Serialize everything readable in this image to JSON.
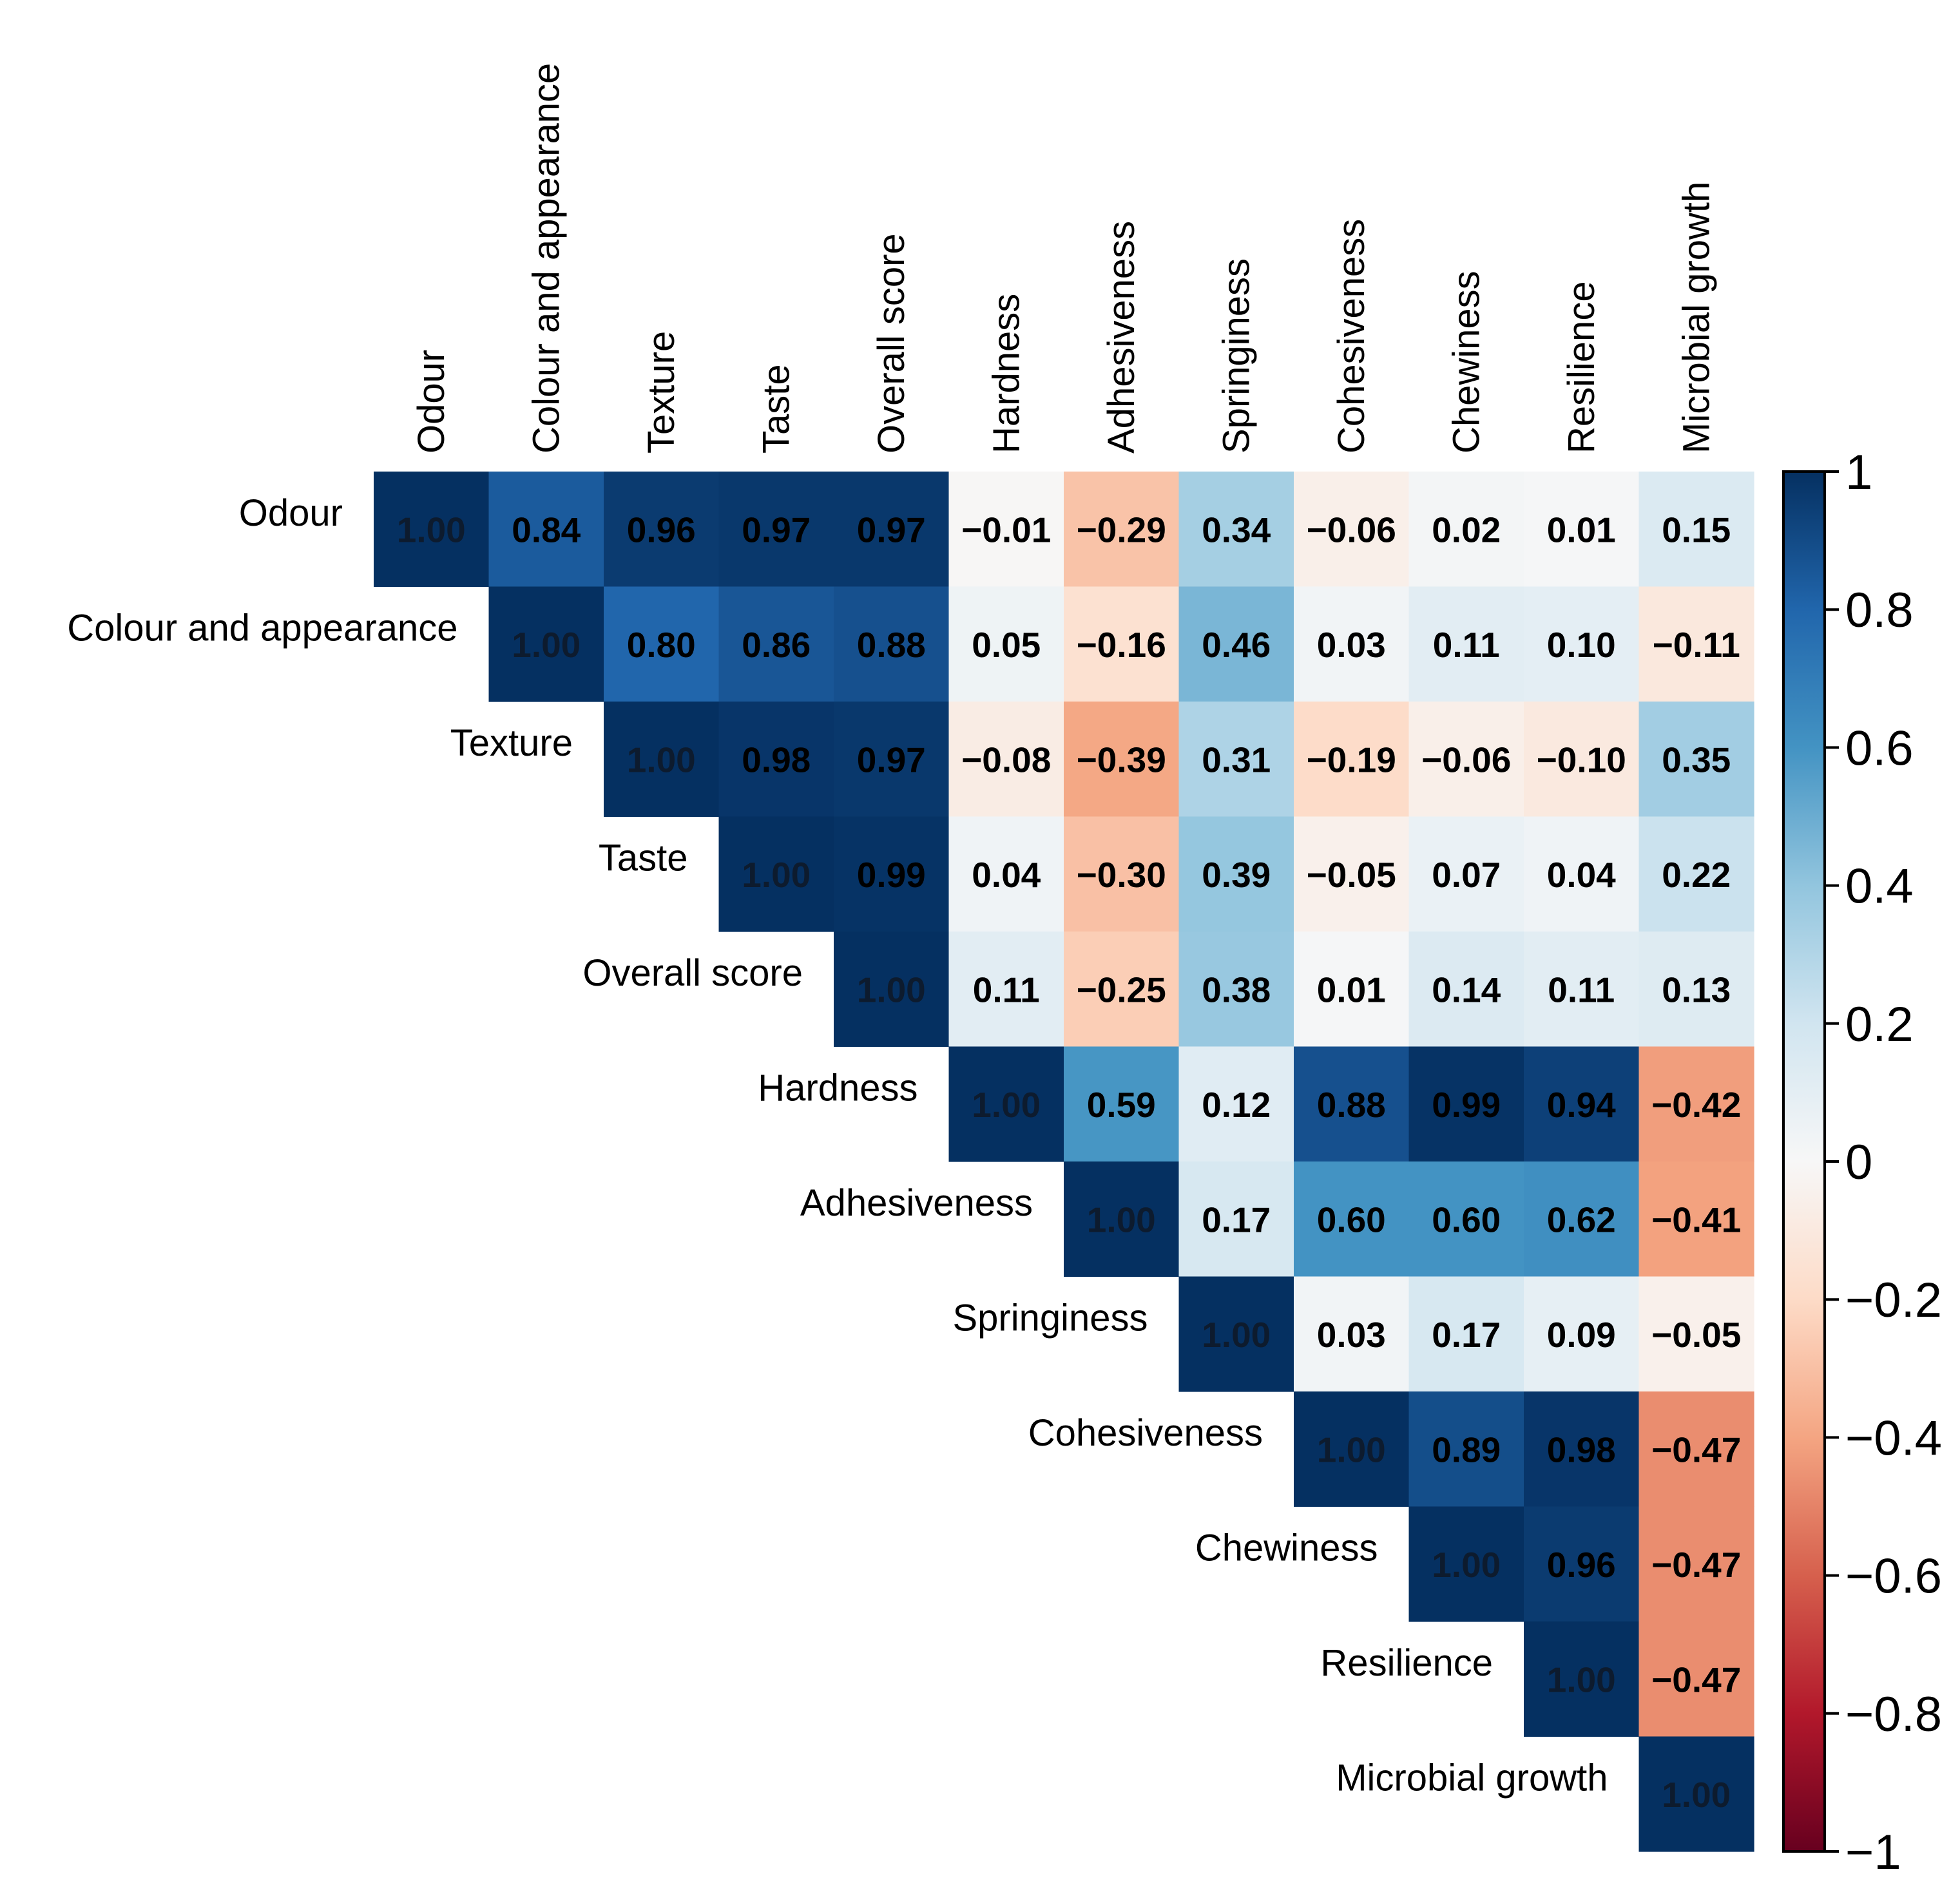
{
  "chart_data": {
    "type": "heatmap",
    "variables": [
      "Odour",
      "Colour and appearance",
      "Texture",
      "Taste",
      "Overall score",
      "Hardness",
      "Adhesiveness",
      "Springiness",
      "Cohesiveness",
      "Chewiness",
      "Resilience",
      "Microbial growth"
    ],
    "matrix": [
      [
        1.0,
        0.84,
        0.96,
        0.97,
        0.97,
        -0.01,
        -0.29,
        0.34,
        -0.06,
        0.02,
        0.01,
        0.15
      ],
      [
        null,
        1.0,
        0.8,
        0.86,
        0.88,
        0.05,
        -0.16,
        0.46,
        0.03,
        0.11,
        0.1,
        -0.11
      ],
      [
        null,
        null,
        1.0,
        0.98,
        0.97,
        -0.08,
        -0.39,
        0.31,
        -0.19,
        -0.06,
        -0.1,
        0.35
      ],
      [
        null,
        null,
        null,
        1.0,
        0.99,
        0.04,
        -0.3,
        0.39,
        -0.05,
        0.07,
        0.04,
        0.22
      ],
      [
        null,
        null,
        null,
        null,
        1.0,
        0.11,
        -0.25,
        0.38,
        0.01,
        0.14,
        0.11,
        0.13
      ],
      [
        null,
        null,
        null,
        null,
        null,
        1.0,
        0.59,
        0.12,
        0.88,
        0.99,
        0.94,
        -0.42
      ],
      [
        null,
        null,
        null,
        null,
        null,
        null,
        1.0,
        0.17,
        0.6,
        0.6,
        0.62,
        -0.41
      ],
      [
        null,
        null,
        null,
        null,
        null,
        null,
        null,
        1.0,
        0.03,
        0.17,
        0.09,
        -0.05
      ],
      [
        null,
        null,
        null,
        null,
        null,
        null,
        null,
        null,
        1.0,
        0.89,
        0.98,
        -0.47
      ],
      [
        null,
        null,
        null,
        null,
        null,
        null,
        null,
        null,
        null,
        1.0,
        0.96,
        -0.47
      ],
      [
        null,
        null,
        null,
        null,
        null,
        null,
        null,
        null,
        null,
        null,
        1.0,
        -0.47
      ],
      [
        null,
        null,
        null,
        null,
        null,
        null,
        null,
        null,
        null,
        null,
        null,
        1.0
      ]
    ],
    "value_format": "2 decimals, minus sign −",
    "colorbar": {
      "range": [
        -1,
        1
      ],
      "ticks": [
        1,
        0.8,
        0.6,
        0.4,
        0.2,
        0,
        -0.2,
        -0.4,
        -0.6,
        -0.8,
        -1
      ],
      "tick_labels": [
        "1",
        "0.8",
        "0.6",
        "0.4",
        "0.2",
        "0",
        "−0.2",
        "−0.4",
        "−0.6",
        "−0.8",
        "−1"
      ],
      "colormap": "RdBu"
    },
    "title": "",
    "xlabel": "",
    "ylabel": ""
  }
}
